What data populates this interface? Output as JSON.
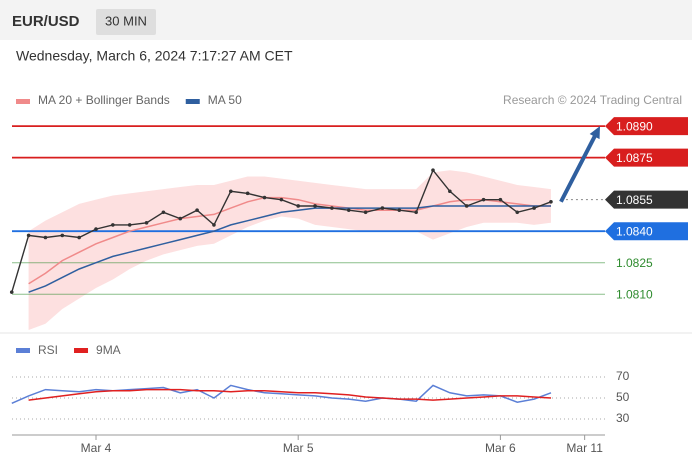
{
  "header": {
    "symbol": "EUR/USD",
    "interval": "30 MIN",
    "datetime": "Wednesday, March 6, 2024 7:17:27 AM CET"
  },
  "chart_data": [
    {
      "type": "line",
      "credit": "Research © 2024 Trading Central",
      "categories": [
        null,
        null,
        null,
        null,
        null,
        "Mar 4",
        null,
        null,
        null,
        null,
        null,
        null,
        null,
        null,
        null,
        null,
        null,
        "Mar 5",
        null,
        null,
        null,
        null,
        null,
        null,
        null,
        null,
        null,
        null,
        null,
        "Mar 6",
        null,
        null,
        null,
        null,
        "Mar 11"
      ],
      "values": [
        1.0811,
        1.0838,
        1.0837,
        1.0838,
        1.0837,
        1.0841,
        1.0843,
        1.0843,
        1.0844,
        1.0849,
        1.0846,
        1.085,
        1.0843,
        1.0859,
        1.0858,
        1.0856,
        1.0855,
        1.0852,
        1.0852,
        1.0851,
        1.085,
        1.0849,
        1.0851,
        1.085,
        1.0849,
        1.0869,
        1.0859,
        1.0852,
        1.0855,
        1.0855,
        1.0849,
        1.0851,
        1.0854,
        null,
        null
      ],
      "color": "#333333",
      "series": [
        {
          "name": "MA 20 + Bollinger Bands",
          "color": "#f08a8a",
          "band_color": "#fde0e0",
          "values": [
            null,
            1.0815,
            1.082,
            1.0826,
            1.083,
            1.0834,
            1.0837,
            1.084,
            1.0842,
            1.0844,
            1.0846,
            1.0847,
            1.0848,
            1.0851,
            1.0854,
            1.0856,
            1.0856,
            1.0855,
            1.0853,
            1.0852,
            1.0851,
            1.085,
            1.085,
            1.085,
            1.085,
            1.0852,
            1.0854,
            1.0855,
            1.0855,
            1.0854,
            1.0853,
            1.0852,
            1.0852,
            null,
            null
          ],
          "upper": [
            null,
            1.084,
            1.0845,
            1.0849,
            1.0853,
            1.0855,
            1.0857,
            1.0858,
            1.0859,
            1.086,
            1.0861,
            1.0862,
            1.0862,
            1.0864,
            1.0866,
            1.0866,
            1.0865,
            1.0864,
            1.0863,
            1.0862,
            1.0861,
            1.086,
            1.086,
            1.086,
            1.086,
            1.0868,
            1.0869,
            1.0868,
            1.0866,
            1.0864,
            1.0862,
            1.0861,
            1.086,
            null,
            null
          ],
          "lower": [
            null,
            1.0793,
            1.0796,
            1.0803,
            1.0808,
            1.0813,
            1.0817,
            1.0822,
            1.0826,
            1.0829,
            1.0831,
            1.0833,
            1.0834,
            1.0838,
            1.0842,
            1.0845,
            1.0847,
            1.0846,
            1.0843,
            1.0842,
            1.0841,
            1.084,
            1.084,
            1.084,
            1.084,
            1.0836,
            1.0839,
            1.0842,
            1.0844,
            1.0844,
            1.0844,
            1.0843,
            1.0844,
            null,
            null
          ]
        },
        {
          "name": "MA 50",
          "color": "#2f5f9f",
          "values": [
            null,
            1.0811,
            1.0814,
            1.0818,
            1.0822,
            1.0825,
            1.0828,
            1.083,
            1.0832,
            1.0834,
            1.0836,
            1.0838,
            1.084,
            1.0843,
            1.0845,
            1.0847,
            1.0849,
            1.085,
            1.0851,
            1.0851,
            1.0851,
            1.0851,
            1.0851,
            1.0851,
            1.0851,
            1.0852,
            1.0852,
            1.0852,
            1.0852,
            1.0852,
            1.0852,
            1.0852,
            1.0852,
            null,
            null
          ]
        }
      ],
      "levels": [
        {
          "value": 1.089,
          "label": "1.0890",
          "color": "#d81e1e",
          "line": "solid",
          "box": true
        },
        {
          "value": 1.0875,
          "label": "1.0875",
          "color": "#d81e1e",
          "line": "solid",
          "box": true
        },
        {
          "value": 1.0855,
          "label": "1.0855",
          "color": "#333333",
          "line": "dotted",
          "box": true
        },
        {
          "value": 1.084,
          "label": "1.0840",
          "color": "#1f6fe0",
          "line": "solid",
          "box": true
        },
        {
          "value": 1.0825,
          "label": "1.0825",
          "color": "#2e8b2e",
          "line": "solid",
          "box": false
        },
        {
          "value": 1.081,
          "label": "1.0810",
          "color": "#2e8b2e",
          "line": "solid",
          "box": false
        }
      ],
      "target_color": "#2f5f9f",
      "ylim": [
        1.0793,
        1.093
      ]
    },
    {
      "type": "line",
      "series": [
        {
          "name": "RSI",
          "color": "#5b7fd6",
          "values": [
            45,
            52,
            58,
            57,
            56,
            58,
            57,
            58,
            59,
            60,
            55,
            58,
            50,
            62,
            58,
            55,
            54,
            53,
            52,
            50,
            49,
            47,
            50,
            49,
            47,
            62,
            55,
            52,
            53,
            52,
            46,
            49,
            55,
            null,
            null
          ]
        },
        {
          "name": "9MA",
          "color": "#e02020",
          "values": [
            null,
            48,
            50,
            52,
            54,
            56,
            57,
            57,
            58,
            58,
            58,
            57,
            57,
            56,
            57,
            57,
            56,
            55,
            55,
            54,
            53,
            51,
            50,
            49,
            49,
            48,
            49,
            50,
            51,
            52,
            52,
            51,
            50,
            null,
            null
          ]
        }
      ],
      "ylim": [
        22,
        78
      ],
      "yticks": [
        70,
        50,
        30
      ],
      "grid": true
    }
  ]
}
